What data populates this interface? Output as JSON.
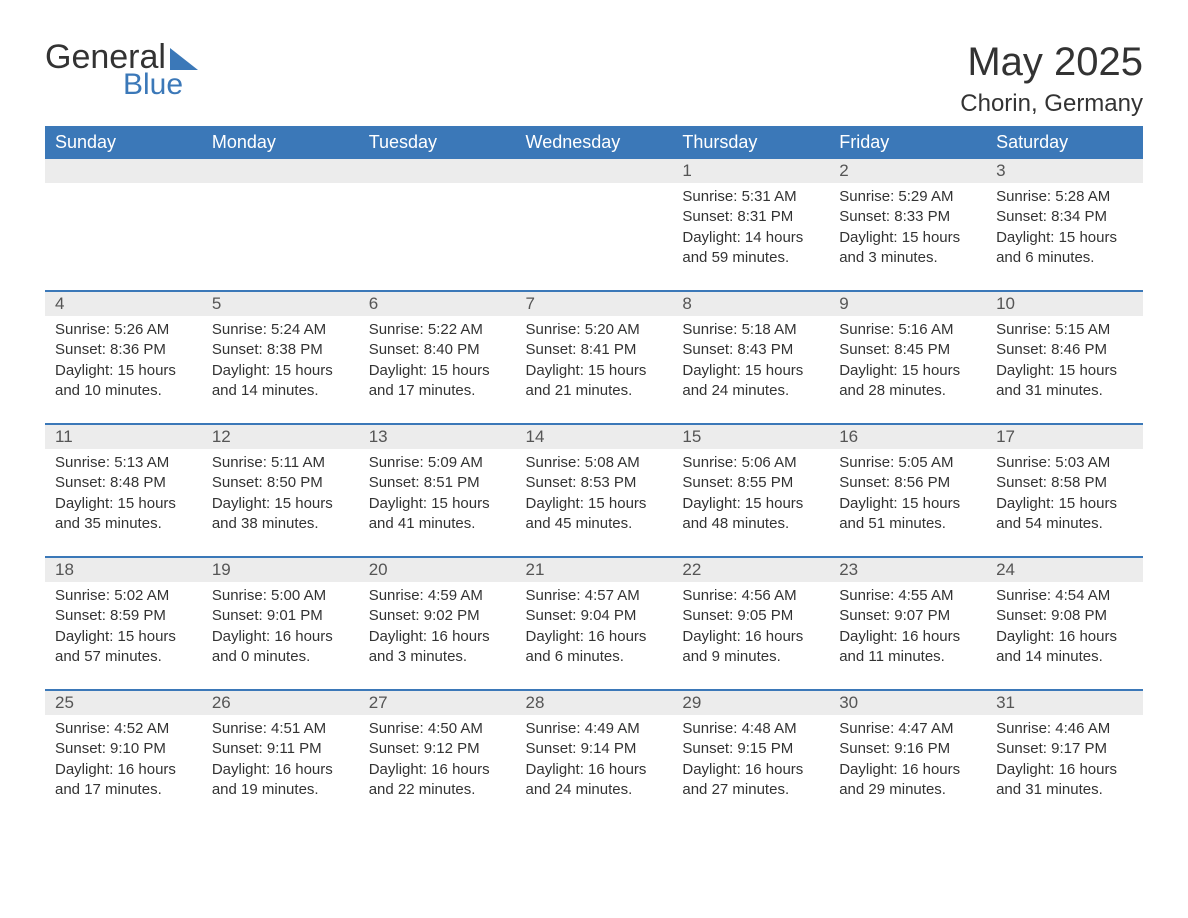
{
  "brand": {
    "general_text": "General",
    "blue_text": "Blue",
    "accent_color": "#3b78b8"
  },
  "header": {
    "month_year": "May 2025",
    "location": "Chorin, Germany"
  },
  "calendar": {
    "type": "table",
    "background_color": "#ffffff",
    "header_bg_color": "#3b78b8",
    "header_text_color": "#ffffff",
    "day_strip_bg": "#ececec",
    "week_border_color": "#3b78b8",
    "body_text_color": "#333333",
    "day_header_fontsize": 18,
    "day_number_fontsize": 17,
    "detail_fontsize": 15,
    "day_names": [
      "Sunday",
      "Monday",
      "Tuesday",
      "Wednesday",
      "Thursday",
      "Friday",
      "Saturday"
    ],
    "weeks": [
      [
        null,
        null,
        null,
        null,
        {
          "num": "1",
          "sunrise": "5:31 AM",
          "sunset": "8:31 PM",
          "daylight": "14 hours and 59 minutes."
        },
        {
          "num": "2",
          "sunrise": "5:29 AM",
          "sunset": "8:33 PM",
          "daylight": "15 hours and 3 minutes."
        },
        {
          "num": "3",
          "sunrise": "5:28 AM",
          "sunset": "8:34 PM",
          "daylight": "15 hours and 6 minutes."
        }
      ],
      [
        {
          "num": "4",
          "sunrise": "5:26 AM",
          "sunset": "8:36 PM",
          "daylight": "15 hours and 10 minutes."
        },
        {
          "num": "5",
          "sunrise": "5:24 AM",
          "sunset": "8:38 PM",
          "daylight": "15 hours and 14 minutes."
        },
        {
          "num": "6",
          "sunrise": "5:22 AM",
          "sunset": "8:40 PM",
          "daylight": "15 hours and 17 minutes."
        },
        {
          "num": "7",
          "sunrise": "5:20 AM",
          "sunset": "8:41 PM",
          "daylight": "15 hours and 21 minutes."
        },
        {
          "num": "8",
          "sunrise": "5:18 AM",
          "sunset": "8:43 PM",
          "daylight": "15 hours and 24 minutes."
        },
        {
          "num": "9",
          "sunrise": "5:16 AM",
          "sunset": "8:45 PM",
          "daylight": "15 hours and 28 minutes."
        },
        {
          "num": "10",
          "sunrise": "5:15 AM",
          "sunset": "8:46 PM",
          "daylight": "15 hours and 31 minutes."
        }
      ],
      [
        {
          "num": "11",
          "sunrise": "5:13 AM",
          "sunset": "8:48 PM",
          "daylight": "15 hours and 35 minutes."
        },
        {
          "num": "12",
          "sunrise": "5:11 AM",
          "sunset": "8:50 PM",
          "daylight": "15 hours and 38 minutes."
        },
        {
          "num": "13",
          "sunrise": "5:09 AM",
          "sunset": "8:51 PM",
          "daylight": "15 hours and 41 minutes."
        },
        {
          "num": "14",
          "sunrise": "5:08 AM",
          "sunset": "8:53 PM",
          "daylight": "15 hours and 45 minutes."
        },
        {
          "num": "15",
          "sunrise": "5:06 AM",
          "sunset": "8:55 PM",
          "daylight": "15 hours and 48 minutes."
        },
        {
          "num": "16",
          "sunrise": "5:05 AM",
          "sunset": "8:56 PM",
          "daylight": "15 hours and 51 minutes."
        },
        {
          "num": "17",
          "sunrise": "5:03 AM",
          "sunset": "8:58 PM",
          "daylight": "15 hours and 54 minutes."
        }
      ],
      [
        {
          "num": "18",
          "sunrise": "5:02 AM",
          "sunset": "8:59 PM",
          "daylight": "15 hours and 57 minutes."
        },
        {
          "num": "19",
          "sunrise": "5:00 AM",
          "sunset": "9:01 PM",
          "daylight": "16 hours and 0 minutes."
        },
        {
          "num": "20",
          "sunrise": "4:59 AM",
          "sunset": "9:02 PM",
          "daylight": "16 hours and 3 minutes."
        },
        {
          "num": "21",
          "sunrise": "4:57 AM",
          "sunset": "9:04 PM",
          "daylight": "16 hours and 6 minutes."
        },
        {
          "num": "22",
          "sunrise": "4:56 AM",
          "sunset": "9:05 PM",
          "daylight": "16 hours and 9 minutes."
        },
        {
          "num": "23",
          "sunrise": "4:55 AM",
          "sunset": "9:07 PM",
          "daylight": "16 hours and 11 minutes."
        },
        {
          "num": "24",
          "sunrise": "4:54 AM",
          "sunset": "9:08 PM",
          "daylight": "16 hours and 14 minutes."
        }
      ],
      [
        {
          "num": "25",
          "sunrise": "4:52 AM",
          "sunset": "9:10 PM",
          "daylight": "16 hours and 17 minutes."
        },
        {
          "num": "26",
          "sunrise": "4:51 AM",
          "sunset": "9:11 PM",
          "daylight": "16 hours and 19 minutes."
        },
        {
          "num": "27",
          "sunrise": "4:50 AM",
          "sunset": "9:12 PM",
          "daylight": "16 hours and 22 minutes."
        },
        {
          "num": "28",
          "sunrise": "4:49 AM",
          "sunset": "9:14 PM",
          "daylight": "16 hours and 24 minutes."
        },
        {
          "num": "29",
          "sunrise": "4:48 AM",
          "sunset": "9:15 PM",
          "daylight": "16 hours and 27 minutes."
        },
        {
          "num": "30",
          "sunrise": "4:47 AM",
          "sunset": "9:16 PM",
          "daylight": "16 hours and 29 minutes."
        },
        {
          "num": "31",
          "sunrise": "4:46 AM",
          "sunset": "9:17 PM",
          "daylight": "16 hours and 31 minutes."
        }
      ]
    ],
    "labels": {
      "sunrise_prefix": "Sunrise: ",
      "sunset_prefix": "Sunset: ",
      "daylight_prefix": "Daylight: "
    }
  }
}
